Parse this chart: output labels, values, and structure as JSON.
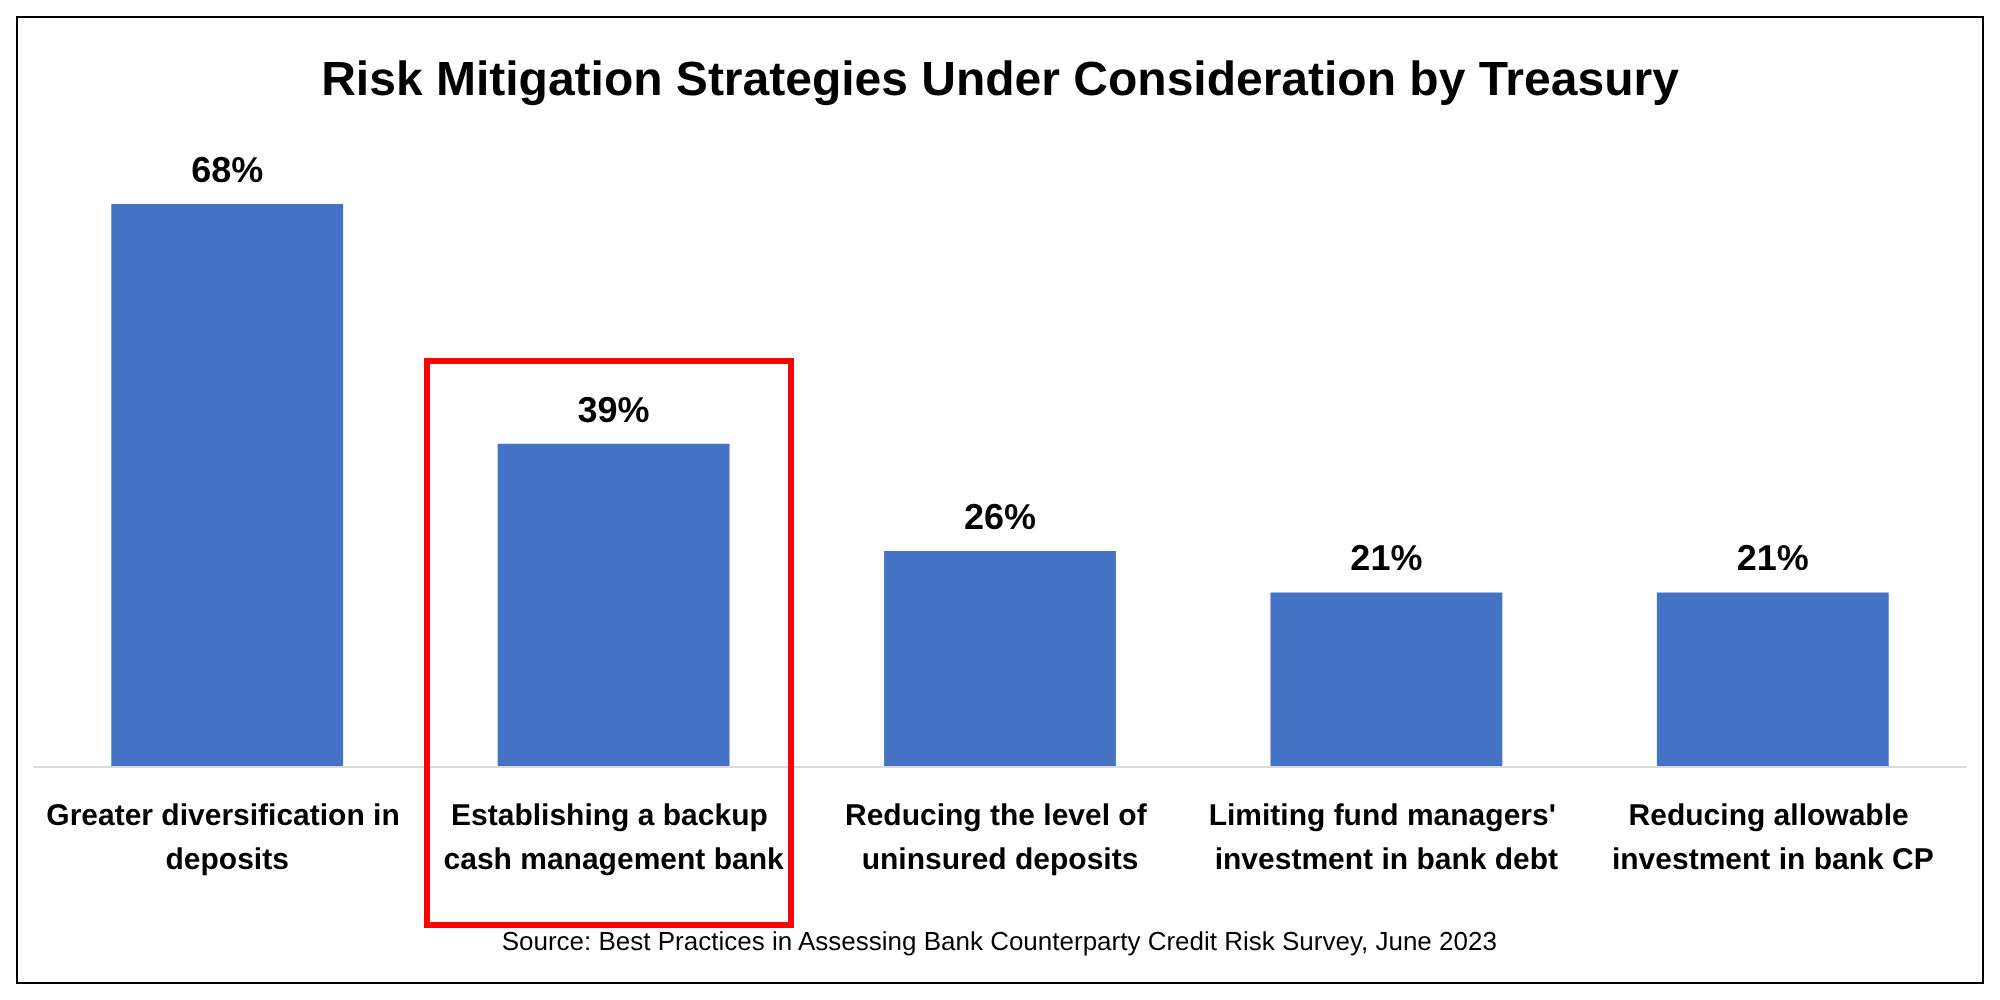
{
  "chart_data": {
    "type": "bar",
    "title": "Risk Mitigation Strategies Under Consideration by Treasury",
    "categories": [
      "Greater diversification in deposits",
      "Establishing a backup cash management bank",
      "Reducing the level of uninsured deposits",
      "Limiting fund managers' investment in bank debt",
      "Reducing allowable investment in bank CP"
    ],
    "values": [
      68,
      39,
      26,
      21,
      21
    ],
    "value_labels": [
      "68%",
      "39%",
      "26%",
      "21%",
      "21%"
    ],
    "color": "#4472c4",
    "annotations": [
      "Source: Best Practices in Assessing Bank Counterparty Credit Risk Survey, June 2023"
    ]
  }
}
